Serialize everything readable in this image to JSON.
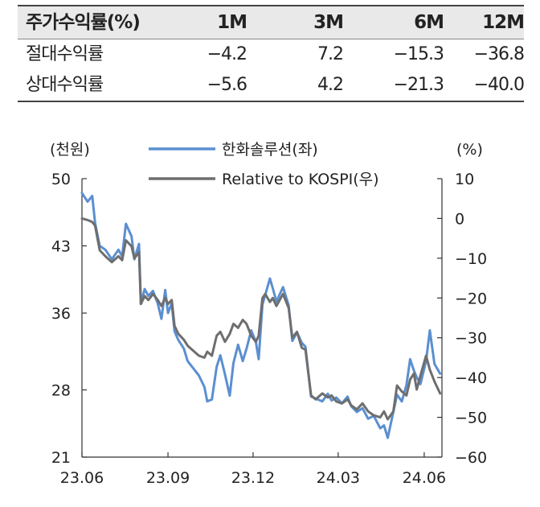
{
  "table": {
    "headers": [
      "주가수익률(%)",
      "1M",
      "3M",
      "6M",
      "12M"
    ],
    "rows": [
      [
        "절대수익률",
        "−4.2",
        "7.2",
        "−15.3",
        "−36.8"
      ],
      [
        "상대수익률",
        "−5.6",
        "4.2",
        "−21.3",
        "−40.0"
      ]
    ]
  },
  "chart_data": {
    "type": "line",
    "left_unit": "(천원)",
    "right_unit": "(%)",
    "y_left": {
      "ticks": [
        50,
        43,
        36,
        28,
        21
      ],
      "range": [
        21,
        50
      ]
    },
    "y_right": {
      "ticks": [
        10,
        0,
        -10,
        -20,
        -30,
        -40,
        -50,
        -60
      ],
      "range": [
        -60,
        10
      ]
    },
    "x_ticks": [
      "23.06",
      "23.09",
      "23.12",
      "24.03",
      "24.06"
    ],
    "x_range": [
      "2023-06-01",
      "2024-06-20"
    ],
    "series": [
      {
        "name": "한화솔루션(좌)",
        "axis": "left",
        "color": "#5b8fd0",
        "points": [
          [
            "2023-06-01",
            48.5
          ],
          [
            "2023-06-07",
            47.6
          ],
          [
            "2023-06-12",
            48.2
          ],
          [
            "2023-06-15",
            45.4
          ],
          [
            "2023-06-20",
            43.0
          ],
          [
            "2023-06-26",
            42.6
          ],
          [
            "2023-07-03",
            41.6
          ],
          [
            "2023-07-10",
            42.6
          ],
          [
            "2023-07-14",
            41.9
          ],
          [
            "2023-07-18",
            45.3
          ],
          [
            "2023-07-24",
            44.0
          ],
          [
            "2023-07-27",
            41.6
          ],
          [
            "2023-08-01",
            43.2
          ],
          [
            "2023-08-03",
            37.0
          ],
          [
            "2023-08-07",
            38.5
          ],
          [
            "2023-08-11",
            37.8
          ],
          [
            "2023-08-16",
            38.3
          ],
          [
            "2023-08-21",
            37.0
          ],
          [
            "2023-08-25",
            35.4
          ],
          [
            "2023-08-29",
            38.4
          ],
          [
            "2023-09-01",
            36.0
          ],
          [
            "2023-09-05",
            37.0
          ],
          [
            "2023-09-08",
            34.1
          ],
          [
            "2023-09-12",
            33.2
          ],
          [
            "2023-09-18",
            32.3
          ],
          [
            "2023-09-22",
            31.0
          ],
          [
            "2023-10-04",
            29.5
          ],
          [
            "2023-10-10",
            28.3
          ],
          [
            "2023-10-13",
            26.8
          ],
          [
            "2023-10-18",
            27.0
          ],
          [
            "2023-10-23",
            30.4
          ],
          [
            "2023-10-27",
            31.6
          ],
          [
            "2023-11-01",
            29.6
          ],
          [
            "2023-11-06",
            27.4
          ],
          [
            "2023-11-10",
            30.8
          ],
          [
            "2023-11-15",
            32.7
          ],
          [
            "2023-11-20",
            31.0
          ],
          [
            "2023-11-24",
            32.3
          ],
          [
            "2023-11-29",
            34.2
          ],
          [
            "2023-12-04",
            33.0
          ],
          [
            "2023-12-07",
            31.2
          ],
          [
            "2023-12-11",
            36.9
          ],
          [
            "2023-12-14",
            37.9
          ],
          [
            "2023-12-19",
            39.6
          ],
          [
            "2023-12-22",
            38.6
          ],
          [
            "2023-12-26",
            37.2
          ],
          [
            "2024-01-02",
            38.7
          ],
          [
            "2024-01-08",
            36.8
          ],
          [
            "2024-01-12",
            33.1
          ],
          [
            "2024-01-17",
            34.0
          ],
          [
            "2024-01-22",
            32.9
          ],
          [
            "2024-01-26",
            32.5
          ],
          [
            "2024-02-01",
            27.3
          ],
          [
            "2024-02-06",
            27.1
          ],
          [
            "2024-02-13",
            26.8
          ],
          [
            "2024-02-19",
            27.6
          ],
          [
            "2024-02-23",
            26.9
          ],
          [
            "2024-02-28",
            27.2
          ],
          [
            "2024-03-05",
            26.6
          ],
          [
            "2024-03-11",
            27.3
          ],
          [
            "2024-03-15",
            26.3
          ],
          [
            "2024-03-21",
            25.7
          ],
          [
            "2024-03-27",
            26.1
          ],
          [
            "2024-04-02",
            25.0
          ],
          [
            "2024-04-08",
            25.3
          ],
          [
            "2024-04-15",
            24.0
          ],
          [
            "2024-04-19",
            24.3
          ],
          [
            "2024-04-23",
            23.0
          ],
          [
            "2024-04-29",
            25.7
          ],
          [
            "2024-05-03",
            27.5
          ],
          [
            "2024-05-08",
            26.8
          ],
          [
            "2024-05-13",
            28.5
          ],
          [
            "2024-05-17",
            31.2
          ],
          [
            "2024-05-21",
            30.0
          ],
          [
            "2024-05-24",
            29.3
          ],
          [
            "2024-05-28",
            28.6
          ],
          [
            "2024-06-03",
            31.0
          ],
          [
            "2024-06-07",
            34.2
          ],
          [
            "2024-06-12",
            30.7
          ],
          [
            "2024-06-18",
            29.7
          ]
        ]
      },
      {
        "name": "Relative to KOSPI(우)",
        "axis": "right",
        "color": "#6e6e6e",
        "points": [
          [
            "2023-06-01",
            0.0
          ],
          [
            "2023-06-07",
            -0.4
          ],
          [
            "2023-06-12",
            -0.9
          ],
          [
            "2023-06-15",
            -1.8
          ],
          [
            "2023-06-20",
            -8.0
          ],
          [
            "2023-06-26",
            -9.5
          ],
          [
            "2023-07-03",
            -11.0
          ],
          [
            "2023-07-10",
            -9.5
          ],
          [
            "2023-07-14",
            -10.5
          ],
          [
            "2023-07-18",
            -5.5
          ],
          [
            "2023-07-24",
            -7.0
          ],
          [
            "2023-07-27",
            -10.0
          ],
          [
            "2023-08-01",
            -8.5
          ],
          [
            "2023-08-03",
            -21.5
          ],
          [
            "2023-08-07",
            -19.5
          ],
          [
            "2023-08-11",
            -20.5
          ],
          [
            "2023-08-16",
            -19.0
          ],
          [
            "2023-08-21",
            -20.5
          ],
          [
            "2023-08-25",
            -22.0
          ],
          [
            "2023-08-29",
            -20.0
          ],
          [
            "2023-09-01",
            -21.5
          ],
          [
            "2023-09-05",
            -20.5
          ],
          [
            "2023-09-08",
            -27.0
          ],
          [
            "2023-09-12",
            -29.0
          ],
          [
            "2023-09-18",
            -30.5
          ],
          [
            "2023-09-22",
            -32.0
          ],
          [
            "2023-10-04",
            -34.5
          ],
          [
            "2023-10-10",
            -35.0
          ],
          [
            "2023-10-13",
            -33.5
          ],
          [
            "2023-10-18",
            -34.5
          ],
          [
            "2023-10-23",
            -29.5
          ],
          [
            "2023-10-27",
            -28.5
          ],
          [
            "2023-11-01",
            -31.0
          ],
          [
            "2023-11-06",
            -29.0
          ],
          [
            "2023-11-10",
            -26.5
          ],
          [
            "2023-11-15",
            -27.5
          ],
          [
            "2023-11-20",
            -25.5
          ],
          [
            "2023-11-24",
            -26.5
          ],
          [
            "2023-11-29",
            -29.5
          ],
          [
            "2023-12-04",
            -31.0
          ],
          [
            "2023-12-07",
            -29.5
          ],
          [
            "2023-12-11",
            -20.0
          ],
          [
            "2023-12-14",
            -19.0
          ],
          [
            "2023-12-19",
            -21.0
          ],
          [
            "2023-12-22",
            -20.0
          ],
          [
            "2023-12-26",
            -22.0
          ],
          [
            "2024-01-02",
            -19.0
          ],
          [
            "2024-01-08",
            -22.5
          ],
          [
            "2024-01-12",
            -30.0
          ],
          [
            "2024-01-17",
            -28.5
          ],
          [
            "2024-01-22",
            -32.5
          ],
          [
            "2024-01-26",
            -33.0
          ],
          [
            "2024-02-01",
            -44.5
          ],
          [
            "2024-02-06",
            -45.5
          ],
          [
            "2024-02-13",
            -44.0
          ],
          [
            "2024-02-19",
            -45.0
          ],
          [
            "2024-02-23",
            -44.5
          ],
          [
            "2024-02-28",
            -46.0
          ],
          [
            "2024-03-05",
            -46.5
          ],
          [
            "2024-03-11",
            -45.5
          ],
          [
            "2024-03-15",
            -47.0
          ],
          [
            "2024-03-21",
            -48.0
          ],
          [
            "2024-03-27",
            -46.5
          ],
          [
            "2024-04-02",
            -48.5
          ],
          [
            "2024-04-08",
            -49.5
          ],
          [
            "2024-04-15",
            -50.0
          ],
          [
            "2024-04-19",
            -48.5
          ],
          [
            "2024-04-23",
            -50.5
          ],
          [
            "2024-04-29",
            -48.5
          ],
          [
            "2024-05-03",
            -42.0
          ],
          [
            "2024-05-08",
            -43.5
          ],
          [
            "2024-05-13",
            -44.5
          ],
          [
            "2024-05-17",
            -40.5
          ],
          [
            "2024-05-21",
            -39.0
          ],
          [
            "2024-05-24",
            -43.0
          ],
          [
            "2024-05-28",
            -39.5
          ],
          [
            "2024-06-03",
            -34.5
          ],
          [
            "2024-06-07",
            -38.0
          ],
          [
            "2024-06-12",
            -41.0
          ],
          [
            "2024-06-18",
            -44.0
          ]
        ]
      }
    ]
  }
}
